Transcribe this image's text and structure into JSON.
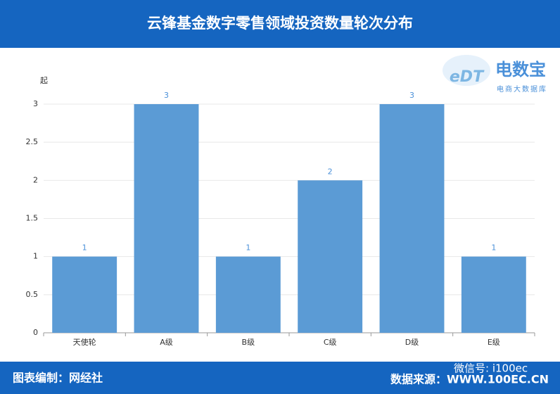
{
  "chart_data": {
    "type": "bar",
    "title": "云锋基金数字零售领域投资数量轮次分布",
    "y_unit": "起",
    "categories": [
      "天使轮",
      "A级",
      "B级",
      "C级",
      "D级",
      "E级"
    ],
    "values": [
      1,
      3,
      1,
      2,
      3,
      1
    ],
    "color": "#5b9bd5",
    "ylim": [
      0,
      3
    ],
    "yticks": [
      0,
      0.5,
      1,
      1.5,
      2,
      2.5,
      3
    ],
    "grid": true
  },
  "logo": {
    "mark": "eDT",
    "name": "电数宝",
    "tagline": "电商大数据库"
  },
  "footer": {
    "credit": "图表编制：网经社",
    "watermark": "微信号: i100ec",
    "source": "数据来源：WWW.100EC.CN"
  }
}
